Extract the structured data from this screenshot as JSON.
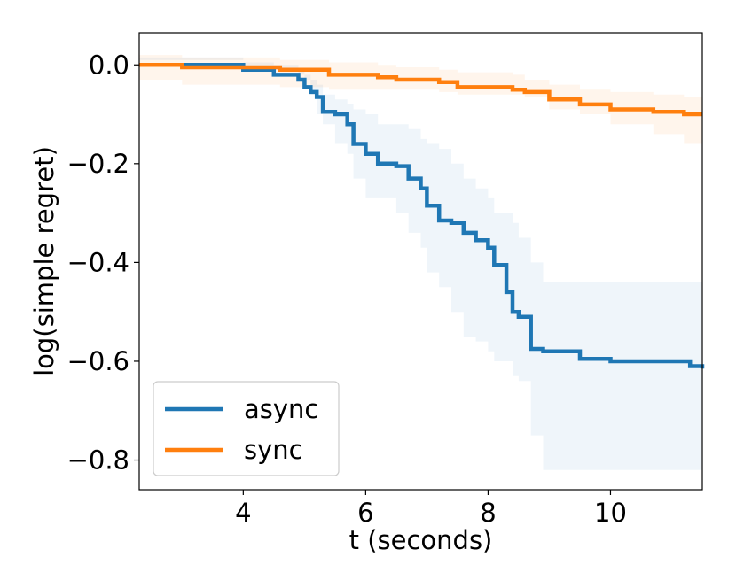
{
  "chart_data": {
    "type": "line",
    "title": "",
    "xlabel": "t (seconds)",
    "ylabel": "log(simple regret)",
    "xlim": [
      2.3,
      11.5
    ],
    "ylim": [
      -0.86,
      0.065
    ],
    "xticks": [
      4,
      6,
      8,
      10
    ],
    "xtick_labels": [
      "4",
      "6",
      "8",
      "10"
    ],
    "yticks": [
      0.0,
      -0.2,
      -0.4,
      -0.6,
      -0.8
    ],
    "ytick_labels": [
      "0.0",
      "−0.2",
      "−0.4",
      "−0.6",
      "−0.8"
    ],
    "grid": false,
    "legend_position": "lower-left",
    "series": [
      {
        "name": "async",
        "color": "#1f77b4",
        "step": true,
        "x": [
          2.3,
          4.0,
          4.5,
          4.9,
          5.0,
          5.1,
          5.2,
          5.3,
          5.5,
          5.7,
          5.8,
          6.0,
          6.2,
          6.5,
          6.7,
          6.9,
          7.0,
          7.2,
          7.4,
          7.6,
          7.8,
          8.0,
          8.1,
          8.3,
          8.4,
          8.5,
          8.7,
          8.9,
          9.5,
          10.0,
          10.9,
          11.3,
          11.5
        ],
        "y": [
          0.0,
          -0.01,
          -0.02,
          -0.03,
          -0.045,
          -0.055,
          -0.065,
          -0.095,
          -0.1,
          -0.12,
          -0.16,
          -0.18,
          -0.2,
          -0.205,
          -0.23,
          -0.25,
          -0.285,
          -0.315,
          -0.32,
          -0.34,
          -0.355,
          -0.37,
          -0.405,
          -0.46,
          -0.5,
          -0.51,
          -0.575,
          -0.58,
          -0.595,
          -0.6,
          -0.6,
          -0.61,
          -0.615
        ],
        "band_lower": [
          0.01,
          -0.005,
          -0.01,
          -0.02,
          -0.03,
          -0.06,
          -0.1,
          -0.12,
          -0.16,
          -0.18,
          -0.23,
          -0.27,
          -0.27,
          -0.3,
          -0.34,
          -0.37,
          -0.42,
          -0.45,
          -0.5,
          -0.55,
          -0.56,
          -0.58,
          -0.6,
          -0.6,
          -0.63,
          -0.64,
          -0.75,
          -0.82,
          -0.82,
          -0.82,
          -0.82,
          -0.82,
          -0.82
        ],
        "band_upper": [
          0.015,
          0.005,
          0.0,
          -0.01,
          -0.02,
          -0.03,
          -0.04,
          -0.06,
          -0.07,
          -0.08,
          -0.09,
          -0.1,
          -0.12,
          -0.12,
          -0.13,
          -0.15,
          -0.16,
          -0.17,
          -0.2,
          -0.23,
          -0.25,
          -0.27,
          -0.3,
          -0.3,
          -0.32,
          -0.35,
          -0.4,
          -0.44,
          -0.44,
          -0.44,
          -0.44,
          -0.44,
          -0.44
        ]
      },
      {
        "name": "sync",
        "color": "#ff7f0e",
        "step": true,
        "x": [
          2.3,
          3.0,
          4.6,
          5.4,
          6.2,
          6.5,
          7.2,
          7.5,
          8.4,
          8.6,
          9.0,
          9.5,
          10.0,
          10.7,
          11.2,
          11.5
        ],
        "y": [
          0.0,
          -0.005,
          -0.01,
          -0.02,
          -0.025,
          -0.03,
          -0.035,
          -0.045,
          -0.05,
          -0.055,
          -0.07,
          -0.08,
          -0.09,
          -0.095,
          -0.1,
          -0.1
        ],
        "band_lower": [
          -0.03,
          -0.04,
          -0.045,
          -0.05,
          -0.05,
          -0.05,
          -0.055,
          -0.06,
          -0.06,
          -0.065,
          -0.09,
          -0.1,
          -0.12,
          -0.14,
          -0.16,
          -0.19
        ],
        "band_upper": [
          0.02,
          0.015,
          0.01,
          0.005,
          0.0,
          -0.005,
          -0.01,
          -0.015,
          -0.02,
          -0.03,
          -0.04,
          -0.05,
          -0.055,
          -0.06,
          -0.065,
          -0.065
        ]
      }
    ]
  }
}
